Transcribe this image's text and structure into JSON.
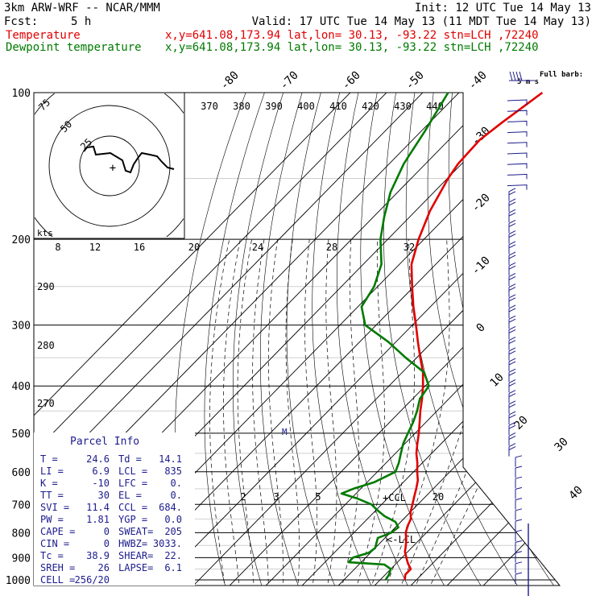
{
  "header": {
    "model": "3km ARW-WRF -- NCAR/MMM",
    "init": "Init: 12 UTC Tue 14 May 13",
    "fcst_label": "Fcst:",
    "fcst_value": "5 h",
    "valid": "Valid: 17 UTC Tue 14 May 13 (11 MDT Tue 14 May 13)"
  },
  "legend": {
    "temperature": {
      "label": "Temperature",
      "info": "x,y=641.08,173.94   lat,lon= 30.13, -93.22  stn=LCH ,72240",
      "color": "#e00000"
    },
    "dewpoint": {
      "label": "Dewpoint temperature",
      "info": "x,y=641.08,173.94   lat,lon= 30.13, -93.22  stn=LCH ,72240",
      "color": "#007a00"
    }
  },
  "chart_data": {
    "type": "line",
    "title": "",
    "pressure_levels": [
      100,
      200,
      300,
      400,
      500,
      600,
      700,
      800,
      900,
      1000
    ],
    "skewed_isotherm_labels": [
      "-80",
      "-70",
      "-60",
      "-50",
      "-40",
      "-30",
      "-20",
      "-10",
      "0",
      "10",
      "20",
      "30",
      "40"
    ],
    "theta_labels": [
      "370",
      "380",
      "390",
      "400",
      "410",
      "420",
      "430",
      "440"
    ],
    "dry_adiabat_labels": [
      "290",
      "280",
      "270"
    ],
    "mixing_ratio_top_labels": [
      "8",
      "12",
      "16",
      "20",
      "24",
      "28",
      "32"
    ],
    "mixing_ratio_bottom_labels": [
      "2",
      "3",
      "5",
      "20"
    ],
    "annotations": {
      "ccl": "+CCL",
      "lcl": "<-LCL",
      "m": "M"
    },
    "series": [
      {
        "name": "Temperature",
        "color": "#e00000",
        "points": [
          [
            1000,
            26.8
          ],
          [
            975,
            25.5
          ],
          [
            950,
            25.5
          ],
          [
            925,
            23.2
          ],
          [
            900,
            21.2
          ],
          [
            875,
            19.2
          ],
          [
            850,
            17.8
          ],
          [
            825,
            16.2
          ],
          [
            800,
            14.3
          ],
          [
            775,
            13.0
          ],
          [
            750,
            12.0
          ],
          [
            725,
            10.0
          ],
          [
            700,
            8.5
          ],
          [
            675,
            6.9
          ],
          [
            650,
            5.3
          ],
          [
            625,
            3.5
          ],
          [
            600,
            1.0
          ],
          [
            575,
            -1.4
          ],
          [
            550,
            -4.2
          ],
          [
            525,
            -6.6
          ],
          [
            500,
            -9.0
          ],
          [
            475,
            -11.7
          ],
          [
            450,
            -14.6
          ],
          [
            425,
            -17.4
          ],
          [
            400,
            -20.6
          ],
          [
            375,
            -24.3
          ],
          [
            350,
            -29.0
          ],
          [
            325,
            -33.9
          ],
          [
            300,
            -39.0
          ],
          [
            275,
            -44.7
          ],
          [
            250,
            -50.5
          ],
          [
            225,
            -56.7
          ],
          [
            200,
            -61.5
          ],
          [
            175,
            -66.0
          ],
          [
            150,
            -69.8
          ],
          [
            140,
            -71.0
          ],
          [
            125,
            -71.5
          ],
          [
            115,
            -70.0
          ],
          [
            100,
            -67.0
          ]
        ]
      },
      {
        "name": "Dewpoint temperature",
        "color": "#007a00",
        "points": [
          [
            1000,
            21.5
          ],
          [
            975,
            21.0
          ],
          [
            950,
            20.0
          ],
          [
            930,
            17.0
          ],
          [
            920,
            6.5
          ],
          [
            900,
            6.5
          ],
          [
            880,
            9.5
          ],
          [
            860,
            10.0
          ],
          [
            840,
            9.0
          ],
          [
            820,
            8.0
          ],
          [
            800,
            10.3
          ],
          [
            780,
            10.8
          ],
          [
            760,
            8.5
          ],
          [
            740,
            4.0
          ],
          [
            720,
            0.5
          ],
          [
            700,
            -2.8
          ],
          [
            680,
            -8.5
          ],
          [
            665,
            -14.0
          ],
          [
            650,
            -12.0
          ],
          [
            630,
            -8.0
          ],
          [
            600,
            -5.0
          ],
          [
            575,
            -6.5
          ],
          [
            550,
            -8.5
          ],
          [
            525,
            -10.5
          ],
          [
            500,
            -12.0
          ],
          [
            475,
            -13.5
          ],
          [
            450,
            -15.5
          ],
          [
            425,
            -18.0
          ],
          [
            400,
            -19.0
          ],
          [
            375,
            -24.0
          ],
          [
            350,
            -33.0
          ],
          [
            325,
            -42.0
          ],
          [
            300,
            -53.0
          ],
          [
            275,
            -59.0
          ],
          [
            250,
            -61.0
          ],
          [
            225,
            -65.0
          ],
          [
            200,
            -72.0
          ],
          [
            180,
            -77.0
          ],
          [
            160,
            -82.0
          ],
          [
            140,
            -86.0
          ],
          [
            120,
            -89.0
          ],
          [
            100,
            -93.0
          ]
        ]
      }
    ],
    "wind_barbs": {
      "label": "Full barb:",
      "unit": "5 m s",
      "count": 46
    }
  },
  "hodograph": {
    "units": "kts",
    "ring_labels": [
      "75",
      "50",
      "25"
    ]
  },
  "parcel_info": {
    "title": "Parcel Info",
    "rows": [
      [
        "T  =",
        "24.6",
        "Td =",
        "14.1"
      ],
      [
        "LI =",
        "6.9",
        "LCL =",
        "835"
      ],
      [
        "K  =",
        "-10",
        "LFC =",
        "0."
      ],
      [
        "TT =",
        "30",
        "EL  =",
        "0."
      ],
      [
        "SVI =",
        "11.4",
        "CCL =",
        "684."
      ],
      [
        "PW =",
        "1.81",
        "YGP =",
        "0.0"
      ],
      [
        "CAPE =",
        "0",
        "SWEAT=",
        "205"
      ],
      [
        "CIN =",
        "0",
        "HWBZ=",
        "3033."
      ],
      [
        "Tc =",
        "38.9",
        "SHEAR=",
        "22."
      ],
      [
        "SREH =",
        "26",
        "LAPSE=",
        "6.1"
      ],
      [
        "CELL =",
        "256/20",
        "",
        ""
      ]
    ]
  }
}
